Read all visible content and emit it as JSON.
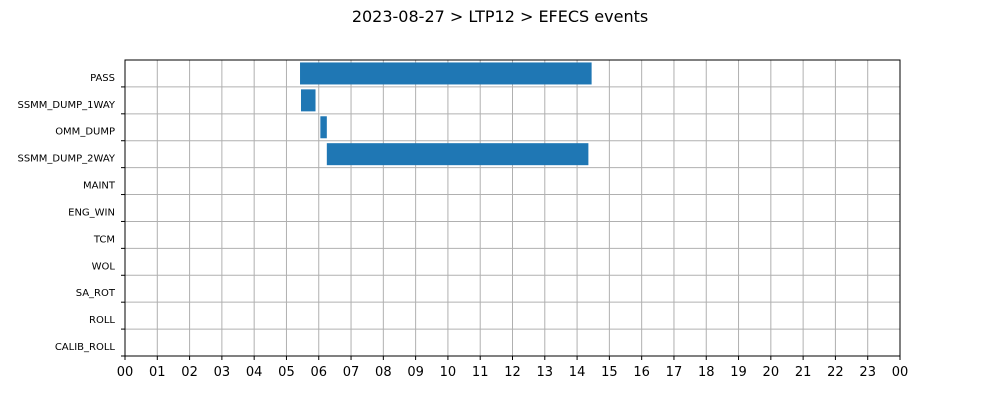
{
  "chart_data": {
    "type": "bar",
    "orientation": "horizontal-timeline",
    "title": "2023-08-27 > LTP12 > EFECS events",
    "xlabel": "",
    "ylabel": "",
    "x_unit": "hour of day",
    "xlim": [
      0,
      24
    ],
    "x_tick_labels": [
      "00",
      "01",
      "02",
      "03",
      "04",
      "05",
      "06",
      "07",
      "08",
      "09",
      "10",
      "11",
      "12",
      "13",
      "14",
      "15",
      "16",
      "17",
      "18",
      "19",
      "20",
      "21",
      "22",
      "23",
      "00"
    ],
    "categories": [
      "PASS",
      "SSMM_DUMP_1WAY",
      "OMM_DUMP",
      "SSMM_DUMP_2WAY",
      "MAINT",
      "ENG_WIN",
      "TCM",
      "WOL",
      "SA_ROT",
      "ROLL",
      "CALIB_ROLL"
    ],
    "events": [
      {
        "category": "PASS",
        "start": 5.42,
        "end": 14.45
      },
      {
        "category": "SSMM_DUMP_1WAY",
        "start": 5.45,
        "end": 5.9
      },
      {
        "category": "OMM_DUMP",
        "start": 6.05,
        "end": 6.25
      },
      {
        "category": "SSMM_DUMP_2WAY",
        "start": 6.25,
        "end": 14.35
      }
    ],
    "grid": true,
    "legend": "none",
    "bar_color": "#1f77b4"
  }
}
